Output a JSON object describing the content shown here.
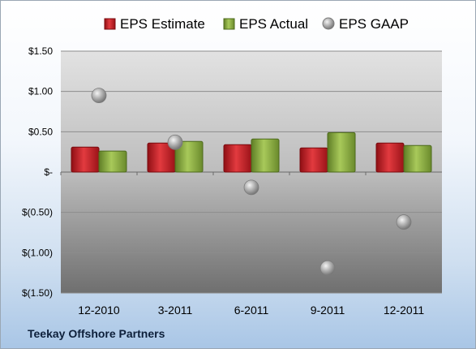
{
  "footer": {
    "company": "Teekay Offshore Partners"
  },
  "chart_data": {
    "type": "bar",
    "categories": [
      "12-2010",
      "3-2011",
      "6-2011",
      "9-2011",
      "12-2011"
    ],
    "series": [
      {
        "name": "EPS Estimate",
        "kind": "bar",
        "color": "#c0191f",
        "values": [
          0.31,
          0.36,
          0.34,
          0.3,
          0.36
        ]
      },
      {
        "name": "EPS Actual",
        "kind": "bar",
        "color": "#8aad3f",
        "values": [
          0.26,
          0.38,
          0.41,
          0.49,
          0.33
        ]
      },
      {
        "name": "EPS GAAP",
        "kind": "scatter",
        "color": "#9a9a9a",
        "values": [
          0.95,
          0.37,
          -0.19,
          -1.19,
          -0.62
        ]
      }
    ],
    "yticks": [
      {
        "value": 1.5,
        "label": "$1.50"
      },
      {
        "value": 1.0,
        "label": "$1.00"
      },
      {
        "value": 0.5,
        "label": "$0.50"
      },
      {
        "value": 0.0,
        "label": "$-"
      },
      {
        "value": -0.5,
        "label": "$(0.50)"
      },
      {
        "value": -1.0,
        "label": "$(1.00)"
      },
      {
        "value": -1.5,
        "label": "$(1.50)"
      }
    ],
    "ylim": [
      -1.5,
      1.5
    ],
    "grid": true,
    "legend_position": "top"
  }
}
